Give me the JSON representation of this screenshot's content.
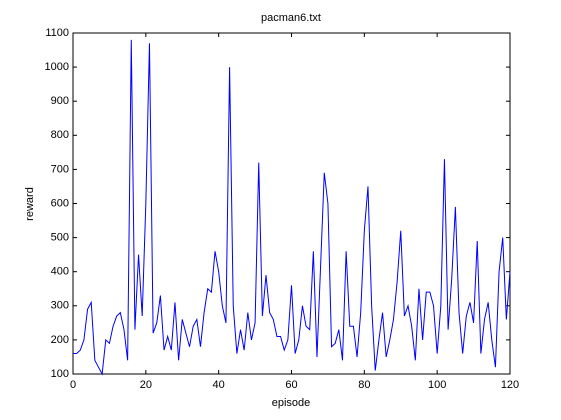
{
  "chart_data": {
    "type": "line",
    "title": "pacman6.txt",
    "x_label": "episode",
    "y_label": "reward",
    "x": [
      0,
      1,
      2,
      3,
      4,
      5,
      6,
      7,
      8,
      9,
      10,
      11,
      12,
      13,
      14,
      15,
      16,
      17,
      18,
      19,
      20,
      21,
      22,
      23,
      24,
      25,
      26,
      27,
      28,
      29,
      30,
      31,
      32,
      33,
      34,
      35,
      36,
      37,
      38,
      39,
      40,
      41,
      42,
      43,
      44,
      45,
      46,
      47,
      48,
      49,
      50,
      51,
      52,
      53,
      54,
      55,
      56,
      57,
      58,
      59,
      60,
      61,
      62,
      63,
      64,
      65,
      66,
      67,
      68,
      69,
      70,
      71,
      72,
      73,
      74,
      75,
      76,
      77,
      78,
      79,
      80,
      81,
      82,
      83,
      84,
      85,
      86,
      87,
      88,
      89,
      90,
      91,
      92,
      93,
      94,
      95,
      96,
      97,
      98,
      99,
      100,
      101,
      102,
      103,
      104,
      105,
      106,
      107,
      108,
      109,
      110,
      111,
      112,
      113,
      114,
      115,
      116,
      117,
      118,
      119,
      120
    ],
    "values": [
      160,
      160,
      170,
      200,
      290,
      310,
      140,
      120,
      100,
      200,
      190,
      240,
      270,
      280,
      230,
      140,
      1080,
      230,
      450,
      270,
      600,
      1070,
      220,
      250,
      330,
      170,
      210,
      170,
      310,
      140,
      260,
      220,
      180,
      240,
      260,
      180,
      280,
      350,
      340,
      460,
      400,
      300,
      250,
      1000,
      300,
      160,
      230,
      170,
      280,
      200,
      250,
      720,
      270,
      390,
      280,
      260,
      210,
      210,
      170,
      200,
      360,
      160,
      200,
      300,
      240,
      230,
      460,
      150,
      420,
      690,
      600,
      180,
      190,
      230,
      140,
      460,
      240,
      240,
      150,
      280,
      520,
      650,
      300,
      110,
      200,
      280,
      150,
      200,
      260,
      370,
      520,
      270,
      300,
      240,
      140,
      350,
      200,
      340,
      340,
      300,
      160,
      300,
      730,
      230,
      380,
      590,
      280,
      160,
      270,
      310,
      250,
      490,
      160,
      260,
      310,
      200,
      120,
      400,
      500,
      260,
      400
    ],
    "color": "#0000ff",
    "xlim": [
      0,
      120
    ],
    "xticks": [
      0,
      20,
      40,
      60,
      80,
      100,
      120
    ],
    "ylim": [
      100,
      1100
    ],
    "yticks": [
      100,
      200,
      300,
      400,
      500,
      600,
      700,
      800,
      900,
      1000,
      1100
    ]
  }
}
